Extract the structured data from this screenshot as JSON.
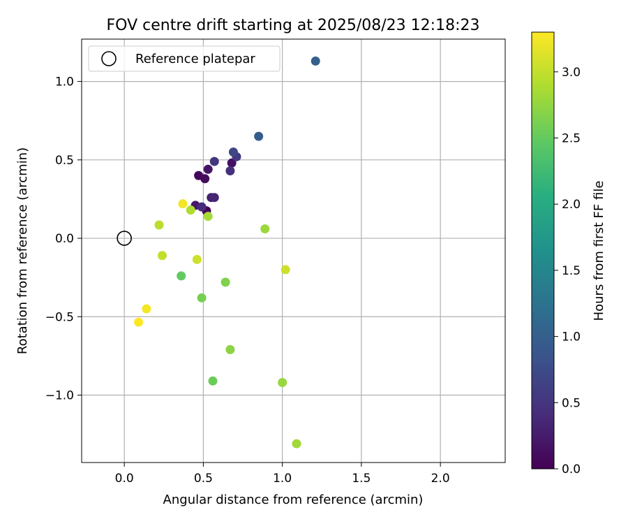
{
  "chart_data": {
    "type": "scatter",
    "title": "FOV centre drift starting at 2025/08/23 12:18:23",
    "xlabel": "Angular distance from reference (arcmin)",
    "ylabel": "Rotation from reference (arcmin)",
    "xlim": [
      -0.27,
      2.41
    ],
    "ylim": [
      -1.43,
      1.27
    ],
    "xticks": [
      0.0,
      0.5,
      1.0,
      1.5,
      2.0
    ],
    "xtick_labels": [
      "0.0",
      "0.5",
      "1.0",
      "1.5",
      "2.0"
    ],
    "yticks": [
      -1.0,
      -0.5,
      0.0,
      0.5,
      1.0
    ],
    "ytick_labels": [
      "−1.0",
      "−0.5",
      "0.0",
      "0.5",
      "1.0"
    ],
    "grid": true,
    "legend": {
      "position": "top-left",
      "entries": [
        {
          "label": "Reference platepar",
          "marker": "hollow-circle",
          "x": 0.0,
          "y": 0.0
        }
      ]
    },
    "colorbar": {
      "label": "Hours from first FF file",
      "colormap": "viridis",
      "range": [
        0.0,
        3.3
      ],
      "ticks": [
        0.0,
        0.5,
        1.0,
        1.5,
        2.0,
        2.5,
        3.0
      ],
      "tick_labels": [
        "0.0",
        "0.5",
        "1.0",
        "1.5",
        "2.0",
        "2.5",
        "3.0"
      ]
    },
    "points": [
      {
        "x": 0.52,
        "y": 0.175,
        "hours": 0.02
      },
      {
        "x": 0.47,
        "y": 0.4,
        "hours": 0.06
      },
      {
        "x": 0.51,
        "y": 0.38,
        "hours": 0.1
      },
      {
        "x": 0.68,
        "y": 0.48,
        "hours": 0.14
      },
      {
        "x": 0.53,
        "y": 0.44,
        "hours": 0.18
      },
      {
        "x": 0.45,
        "y": 0.21,
        "hours": 0.22
      },
      {
        "x": 0.55,
        "y": 0.26,
        "hours": 0.3
      },
      {
        "x": 0.57,
        "y": 0.26,
        "hours": 0.34
      },
      {
        "x": 0.49,
        "y": 0.2,
        "hours": 0.4
      },
      {
        "x": 0.67,
        "y": 0.43,
        "hours": 0.45
      },
      {
        "x": 0.57,
        "y": 0.49,
        "hours": 0.5
      },
      {
        "x": 0.71,
        "y": 0.52,
        "hours": 0.55
      },
      {
        "x": 0.69,
        "y": 0.55,
        "hours": 0.7
      },
      {
        "x": 0.85,
        "y": 0.65,
        "hours": 0.95
      },
      {
        "x": 1.21,
        "y": 1.13,
        "hours": 1.0
      },
      {
        "x": 0.36,
        "y": -0.24,
        "hours": 2.5
      },
      {
        "x": 0.56,
        "y": -0.91,
        "hours": 2.55
      },
      {
        "x": 0.49,
        "y": -0.38,
        "hours": 2.6
      },
      {
        "x": 0.64,
        "y": -0.28,
        "hours": 2.65
      },
      {
        "x": 0.67,
        "y": -0.71,
        "hours": 2.72
      },
      {
        "x": 1.0,
        "y": -0.92,
        "hours": 2.78
      },
      {
        "x": 1.09,
        "y": -1.31,
        "hours": 2.82
      },
      {
        "x": 0.89,
        "y": 0.06,
        "hours": 2.8
      },
      {
        "x": 0.53,
        "y": 0.14,
        "hours": 2.85
      },
      {
        "x": 0.42,
        "y": 0.18,
        "hours": 2.9
      },
      {
        "x": 0.22,
        "y": 0.085,
        "hours": 2.95
      },
      {
        "x": 0.24,
        "y": -0.11,
        "hours": 3.0
      },
      {
        "x": 0.46,
        "y": -0.135,
        "hours": 3.05
      },
      {
        "x": 1.02,
        "y": -0.2,
        "hours": 3.05
      },
      {
        "x": 0.37,
        "y": 0.22,
        "hours": 3.25
      },
      {
        "x": 0.14,
        "y": -0.45,
        "hours": 3.25
      },
      {
        "x": 0.09,
        "y": -0.535,
        "hours": 3.3
      }
    ]
  }
}
